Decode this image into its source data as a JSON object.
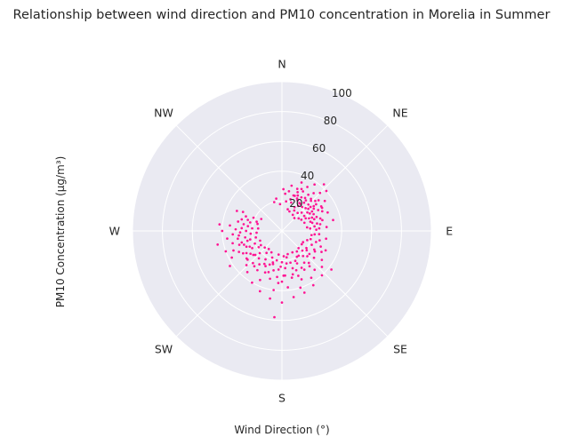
{
  "chart_data": {
    "type": "scatter",
    "projection": "polar",
    "title": "Relationship between wind direction and PM10 concentration in Morelia in Summer",
    "xlabel": "Wind Direction (°)",
    "ylabel": "PM10 Concentration (µg/m³)",
    "direction_labels": [
      "N",
      "NE",
      "E",
      "SE",
      "S",
      "SW",
      "W",
      "NW"
    ],
    "theta_ticks_deg": [
      0,
      45,
      90,
      135,
      180,
      225,
      270,
      315
    ],
    "r_ticks": [
      "20",
      "40",
      "60",
      "80",
      "100"
    ],
    "r_tick_values": [
      20,
      40,
      60,
      80,
      100
    ],
    "rlim": [
      0,
      100
    ],
    "grid": true,
    "point_color": "#ff1493",
    "background_color": "#eaeaf2",
    "series": [
      {
        "values": [
          [
            15,
            22
          ],
          [
            18,
            20
          ],
          [
            20,
            25
          ],
          [
            22,
            28
          ],
          [
            25,
            24
          ],
          [
            28,
            30
          ],
          [
            30,
            26
          ],
          [
            32,
            22
          ],
          [
            35,
            27
          ],
          [
            38,
            24
          ],
          [
            40,
            21
          ],
          [
            42,
            29
          ],
          [
            45,
            25
          ],
          [
            48,
            30
          ],
          [
            50,
            23
          ],
          [
            52,
            27
          ],
          [
            55,
            26
          ],
          [
            58,
            22
          ],
          [
            60,
            28
          ],
          [
            62,
            24
          ],
          [
            65,
            20
          ],
          [
            68,
            25
          ],
          [
            70,
            23
          ],
          [
            72,
            27
          ],
          [
            75,
            21
          ],
          [
            78,
            24
          ],
          [
            80,
            26
          ],
          [
            82,
            22
          ],
          [
            85,
            19
          ],
          [
            88,
            23
          ],
          [
            40,
            33
          ],
          [
            35,
            38
          ],
          [
            45,
            36
          ],
          [
            50,
            32
          ],
          [
            55,
            35
          ],
          [
            30,
            34
          ],
          [
            60,
            31
          ],
          [
            25,
            31
          ],
          [
            42,
            42
          ],
          [
            48,
            40
          ],
          [
            38,
            26
          ],
          [
            44,
            28
          ],
          [
            52,
            29
          ],
          [
            58,
            31
          ],
          [
            33,
            20
          ],
          [
            28,
            18
          ],
          [
            62,
            18
          ],
          [
            66,
            22
          ],
          [
            36,
            30
          ],
          [
            46,
            22
          ],
          [
            54,
            21
          ],
          [
            72,
            20
          ],
          [
            24,
            26
          ],
          [
            18,
            25
          ],
          [
            10,
            27
          ],
          [
            12,
            31
          ],
          [
            5,
            25
          ],
          [
            8,
            20
          ],
          [
            2,
            28
          ],
          [
            356,
            18
          ],
          [
            350,
            22
          ],
          [
            345,
            20
          ],
          [
            64,
            30
          ],
          [
            75,
            28
          ],
          [
            86,
            25
          ],
          [
            56,
            18
          ],
          [
            47,
            18
          ],
          [
            41,
            16
          ],
          [
            31,
            16
          ],
          [
            27,
            23
          ],
          [
            20,
            30
          ],
          [
            22,
            35
          ],
          [
            85,
            30
          ],
          [
            95,
            25
          ],
          [
            96,
            22
          ],
          [
            78,
            35
          ],
          [
            68,
            33
          ],
          [
            35,
            22
          ],
          [
            50,
            25
          ],
          [
            57,
            24
          ],
          [
            100,
            30
          ],
          [
            98,
            20
          ],
          [
            82,
            17
          ],
          [
            70,
            16
          ],
          [
            60,
            15
          ],
          [
            53,
            14
          ],
          [
            44,
            12
          ],
          [
            34,
            13
          ],
          [
            21,
            14
          ],
          [
            15,
            15
          ],
          [
            110,
            18
          ],
          [
            115,
            22
          ],
          [
            120,
            25
          ],
          [
            125,
            20
          ],
          [
            130,
            28
          ],
          [
            135,
            24
          ],
          [
            140,
            22
          ],
          [
            145,
            26
          ],
          [
            150,
            20
          ],
          [
            155,
            24
          ],
          [
            160,
            28
          ],
          [
            165,
            22
          ],
          [
            170,
            18
          ],
          [
            175,
            25
          ],
          [
            180,
            21
          ],
          [
            185,
            26
          ],
          [
            190,
            20
          ],
          [
            195,
            23
          ],
          [
            200,
            19
          ],
          [
            205,
            26
          ],
          [
            210,
            22
          ],
          [
            215,
            18
          ],
          [
            220,
            24
          ],
          [
            225,
            21
          ],
          [
            230,
            25
          ],
          [
            235,
            19
          ],
          [
            240,
            23
          ],
          [
            245,
            20
          ],
          [
            250,
            27
          ],
          [
            255,
            22
          ],
          [
            260,
            25
          ],
          [
            265,
            21
          ],
          [
            270,
            24
          ],
          [
            275,
            20
          ],
          [
            280,
            26
          ],
          [
            285,
            22
          ],
          [
            290,
            18
          ],
          [
            295,
            21
          ],
          [
            300,
            16
          ],
          [
            112,
            28
          ],
          [
            118,
            30
          ],
          [
            126,
            33
          ],
          [
            132,
            36
          ],
          [
            140,
            34
          ],
          [
            148,
            37
          ],
          [
            138,
            40
          ],
          [
            128,
            42
          ],
          [
            150,
            30
          ],
          [
            158,
            35
          ],
          [
            162,
            40
          ],
          [
            168,
            32
          ],
          [
            174,
            38
          ],
          [
            178,
            30
          ],
          [
            184,
            35
          ],
          [
            188,
            40
          ],
          [
            194,
            33
          ],
          [
            198,
            29
          ],
          [
            204,
            36
          ],
          [
            212,
            31
          ],
          [
            218,
            30
          ],
          [
            226,
            33
          ],
          [
            232,
            30
          ],
          [
            238,
            28
          ],
          [
            244,
            32
          ],
          [
            248,
            35
          ],
          [
            252,
            30
          ],
          [
            256,
            34
          ],
          [
            260,
            30
          ],
          [
            262,
            37
          ],
          [
            266,
            33
          ],
          [
            268,
            28
          ],
          [
            272,
            31
          ],
          [
            276,
            35
          ],
          [
            282,
            30
          ],
          [
            286,
            28
          ],
          [
            292,
            26
          ],
          [
            296,
            29
          ],
          [
            270,
            40
          ],
          [
            258,
            44
          ],
          [
            250,
            40
          ],
          [
            242,
            38
          ],
          [
            236,
            42
          ],
          [
            210,
            40
          ],
          [
            200,
            43
          ],
          [
            190,
            46
          ],
          [
            180,
            48
          ],
          [
            170,
            45
          ],
          [
            160,
            44
          ],
          [
            150,
            42
          ],
          [
            185,
            58
          ],
          [
            122,
            26
          ],
          [
            128,
            21
          ],
          [
            134,
            19
          ],
          [
            142,
            30
          ],
          [
            146,
            20
          ],
          [
            152,
            28
          ],
          [
            156,
            22
          ],
          [
            164,
            26
          ],
          [
            172,
            22
          ],
          [
            176,
            30
          ],
          [
            182,
            24
          ],
          [
            186,
            31
          ],
          [
            192,
            27
          ],
          [
            196,
            22
          ],
          [
            202,
            30
          ],
          [
            208,
            25
          ],
          [
            214,
            27
          ],
          [
            222,
            29
          ],
          [
            228,
            24
          ],
          [
            234,
            26
          ],
          [
            240,
            30
          ],
          [
            246,
            26
          ],
          [
            254,
            28
          ],
          [
            264,
            29
          ],
          [
            274,
            27
          ],
          [
            278,
            23
          ],
          [
            288,
            24
          ],
          [
            294,
            33
          ],
          [
            118,
            16
          ],
          [
            106,
            20
          ],
          [
            108,
            24
          ],
          [
            124,
            16
          ],
          [
            136,
            16
          ],
          [
            144,
            17
          ],
          [
            154,
            16
          ],
          [
            166,
            16
          ],
          [
            176,
            17
          ],
          [
            188,
            16
          ],
          [
            206,
            16
          ],
          [
            216,
            15
          ],
          [
            226,
            16
          ],
          [
            236,
            17
          ],
          [
            246,
            16
          ],
          [
            256,
            18
          ],
          [
            266,
            17
          ],
          [
            276,
            16
          ],
          [
            286,
            17
          ],
          [
            104,
            26
          ],
          [
            114,
            32
          ],
          [
            276,
            42
          ],
          [
            180,
            34
          ],
          [
            166,
            30
          ],
          [
            200,
            24
          ],
          [
            220,
            36
          ],
          [
            140,
            28
          ],
          [
            130,
            24
          ],
          [
            230,
            30
          ],
          [
            244,
            24
          ],
          [
            254,
            24
          ],
          [
            160,
            32
          ]
        ]
      }
    ]
  }
}
